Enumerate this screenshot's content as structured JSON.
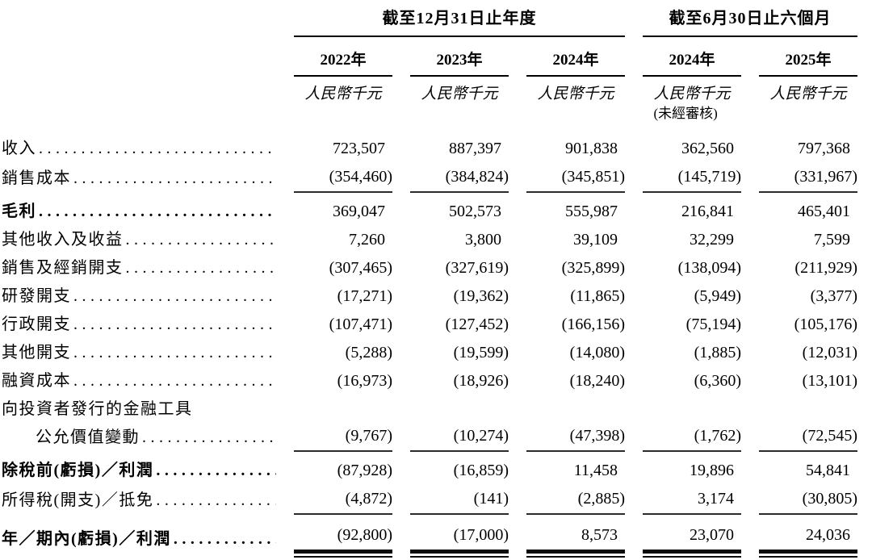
{
  "document": {
    "type": "income-statement-table",
    "currency_note": "人民幣千元",
    "colors": {
      "text": "#000000",
      "header_rule": "#000000",
      "subtotal_rule": "#2b2b2b"
    }
  },
  "table": {
    "column_groups": [
      {
        "label": "截至12月31日止年度",
        "span": 3
      },
      {
        "label": "截至6月30日止六個月",
        "span": 2
      }
    ],
    "columns": [
      {
        "year": "2022年",
        "unit": "人民幣千元",
        "note": ""
      },
      {
        "year": "2023年",
        "unit": "人民幣千元",
        "note": ""
      },
      {
        "year": "2024年",
        "unit": "人民幣千元",
        "note": ""
      },
      {
        "year": "2024年",
        "unit": "人民幣千元",
        "note": "(未經審核)"
      },
      {
        "year": "2025年",
        "unit": "人民幣千元",
        "note": ""
      }
    ],
    "rows": [
      {
        "label": "收入",
        "bold": false,
        "leader": true,
        "rule_below": false,
        "values": [
          "723,507",
          "887,397",
          "901,838",
          "362,560",
          "797,368"
        ]
      },
      {
        "label": "銷售成本",
        "bold": false,
        "leader": true,
        "rule_below": true,
        "values": [
          "(354,460)",
          "(384,824)",
          "(345,851)",
          "(145,719)",
          "(331,967)"
        ]
      },
      {
        "label": "毛利",
        "bold": true,
        "leader": true,
        "rule_below": false,
        "space_before": true,
        "values": [
          "369,047",
          "502,573",
          "555,987",
          "216,841",
          "465,401"
        ]
      },
      {
        "label": "其他收入及收益",
        "bold": false,
        "leader": true,
        "rule_below": false,
        "values": [
          "7,260",
          "3,800",
          "39,109",
          "32,299",
          "7,599"
        ]
      },
      {
        "label": "銷售及經銷開支",
        "bold": false,
        "leader": true,
        "rule_below": false,
        "values": [
          "(307,465)",
          "(327,619)",
          "(325,899)",
          "(138,094)",
          "(211,929)"
        ]
      },
      {
        "label": "研發開支",
        "bold": false,
        "leader": true,
        "rule_below": false,
        "values": [
          "(17,271)",
          "(19,362)",
          "(11,865)",
          "(5,949)",
          "(3,377)"
        ]
      },
      {
        "label": "行政開支",
        "bold": false,
        "leader": true,
        "rule_below": false,
        "values": [
          "(107,471)",
          "(127,452)",
          "(166,156)",
          "(75,194)",
          "(105,176)"
        ]
      },
      {
        "label": "其他開支",
        "bold": false,
        "leader": true,
        "rule_below": false,
        "values": [
          "(5,288)",
          "(19,599)",
          "(14,080)",
          "(1,885)",
          "(12,031)"
        ]
      },
      {
        "label": "融資成本",
        "bold": false,
        "leader": true,
        "rule_below": false,
        "values": [
          "(16,973)",
          "(18,926)",
          "(18,240)",
          "(6,360)",
          "(13,101)"
        ]
      },
      {
        "label": "向投資者發行的金融工具",
        "label_line2": "公允價值變動",
        "bold": false,
        "leader": true,
        "rule_below": true,
        "values": [
          "(9,767)",
          "(10,274)",
          "(47,398)",
          "(1,762)",
          "(72,545)"
        ]
      },
      {
        "label": "除稅前(虧損)／利潤",
        "bold": true,
        "leader": true,
        "rule_below": false,
        "space_before": true,
        "values": [
          "(87,928)",
          "(16,859)",
          "11,458",
          "19,896",
          "54,841"
        ]
      },
      {
        "label": "所得稅(開支)／抵免",
        "bold": false,
        "leader": true,
        "rule_below": true,
        "values": [
          "(4,872)",
          "(141)",
          "(2,885)",
          "3,174",
          "(30,805)"
        ]
      },
      {
        "label": "年／期內(虧損)／利潤",
        "bold": true,
        "leader": true,
        "rule_below": false,
        "space_before": true,
        "double_rule_below": true,
        "values": [
          "(92,800)",
          "(17,000)",
          "8,573",
          "23,070",
          "24,036"
        ]
      }
    ]
  }
}
